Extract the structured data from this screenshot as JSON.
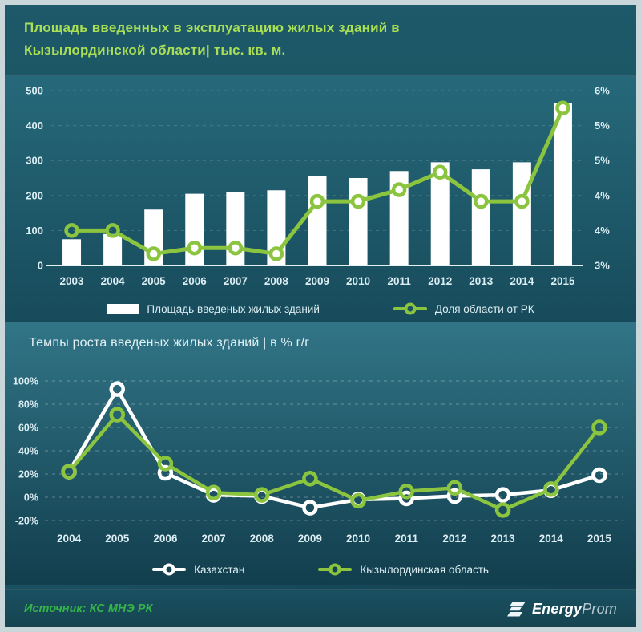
{
  "header": {
    "title_line1": "Площадь введенных в эксплуатацию жилых зданий в",
    "title_line2": "Кызылординской области| тыс. кв. м."
  },
  "footer": {
    "source": "Источник: КС МНЭ РК",
    "logo_bold": "Energy",
    "logo_light": "Prom"
  },
  "colors": {
    "title_green": "#a9de57",
    "accent_green": "#8bc53f",
    "bar_white": "#ffffff",
    "axis_text": "#dceef3",
    "source_green": "#35b44a",
    "background_teal": "#1c5766"
  },
  "chart_data": [
    {
      "type": "bar",
      "title": "Площадь введенных в эксплуатацию жилых зданий в Кызылординской области| тыс. кв. м.",
      "categories": [
        "2003",
        "2004",
        "2005",
        "2006",
        "2007",
        "2008",
        "2009",
        "2010",
        "2011",
        "2012",
        "2013",
        "2014",
        "2015"
      ],
      "series": [
        {
          "name": "Площадь введеных жилых зданий",
          "type": "bar",
          "axis": "left",
          "color": "#ffffff",
          "values": [
            75,
            90,
            160,
            205,
            210,
            215,
            255,
            250,
            270,
            295,
            275,
            295,
            465
          ]
        },
        {
          "name": "Доля области от РК",
          "type": "line",
          "axis": "right",
          "color": "#8bc53f",
          "values": [
            3.6,
            3.6,
            3.2,
            3.3,
            3.3,
            3.2,
            4.1,
            4.1,
            4.3,
            4.6,
            4.1,
            4.1,
            5.7
          ]
        }
      ],
      "left_axis": {
        "min": 0,
        "max": 500,
        "ticks": [
          0,
          100,
          200,
          300,
          400,
          500
        ]
      },
      "right_axis": {
        "min": 3,
        "max": 6,
        "tick_labels": [
          "3%",
          "4%",
          "4%",
          "5%",
          "5%",
          "6%"
        ]
      },
      "grid": true,
      "legend_position": "bottom"
    },
    {
      "type": "line",
      "title": "Темпы роста введеных жилых зданий | в % г/г",
      "categories": [
        "2004",
        "2005",
        "2006",
        "2007",
        "2008",
        "2009",
        "2010",
        "2011",
        "2012",
        "2013",
        "2014",
        "2015"
      ],
      "series": [
        {
          "name": "Казахстан",
          "color": "#ffffff",
          "values": [
            22,
            93,
            21,
            2,
            1,
            -9,
            -2,
            -1,
            1,
            2,
            6,
            19
          ]
        },
        {
          "name": "Кызылординская область",
          "color": "#8bc53f",
          "values": [
            22,
            71,
            29,
            4,
            2,
            16,
            -3,
            5,
            8,
            -11,
            7,
            60
          ]
        }
      ],
      "y_axis": {
        "min": -20,
        "max": 100,
        "step": 20,
        "tick_labels": [
          "100%",
          "80%",
          "60%",
          "40%",
          "20%",
          "0%",
          "-20%"
        ]
      },
      "grid": true,
      "legend_position": "bottom"
    }
  ]
}
